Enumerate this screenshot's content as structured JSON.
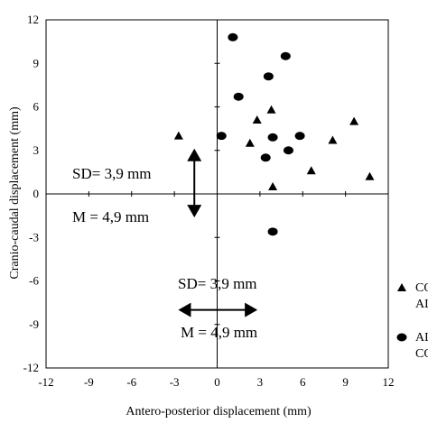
{
  "chart_data": {
    "type": "scatter",
    "xlabel": "Antero-posterior displacement (mm)",
    "ylabel": "Cranio-caudal displacement (mm)",
    "xlim": [
      -12,
      12
    ],
    "ylim": [
      -12,
      12
    ],
    "xticks": [
      -12,
      -9,
      -6,
      -3,
      0,
      3,
      6,
      9,
      12
    ],
    "yticks": [
      -12,
      -9,
      -6,
      -3,
      0,
      3,
      6,
      9,
      12
    ],
    "xtick_labels": [
      "-12",
      "-9",
      "-6",
      "-3",
      "0",
      "3",
      "6",
      "9",
      "12"
    ],
    "ytick_labels": [
      "-12",
      "-9",
      "-6",
      "-3",
      "0",
      "3",
      "6",
      "9",
      "12"
    ],
    "grid": false,
    "legend_position": "right",
    "series": [
      {
        "name": "CO",
        "name_line2": "AL",
        "marker": "triangle",
        "color": "#000000",
        "points": [
          {
            "x": -2.7,
            "y": 4.0
          },
          {
            "x": 2.3,
            "y": 3.5
          },
          {
            "x": 2.8,
            "y": 5.1
          },
          {
            "x": 3.8,
            "y": 5.8
          },
          {
            "x": 3.9,
            "y": 0.5
          },
          {
            "x": 6.6,
            "y": 1.6
          },
          {
            "x": 8.1,
            "y": 3.7
          },
          {
            "x": 9.6,
            "y": 5.0
          },
          {
            "x": 10.7,
            "y": 1.2
          }
        ]
      },
      {
        "name": "AL",
        "name_line2": "CO",
        "marker": "circle",
        "color": "#000000",
        "points": [
          {
            "x": 1.1,
            "y": 10.8
          },
          {
            "x": 0.3,
            "y": 4.0
          },
          {
            "x": 1.5,
            "y": 6.7
          },
          {
            "x": 3.6,
            "y": 8.1
          },
          {
            "x": 4.8,
            "y": 9.5
          },
          {
            "x": 3.9,
            "y": 3.9
          },
          {
            "x": 5.0,
            "y": 3.0
          },
          {
            "x": 3.4,
            "y": 2.5
          },
          {
            "x": 5.8,
            "y": 4.0
          },
          {
            "x": 3.9,
            "y": -2.6
          }
        ]
      }
    ],
    "annotations": [
      {
        "text_sd": "SD= 3,9 mm",
        "text_m": "M = 4,9 mm",
        "arrow": "vertical",
        "x": -1.6,
        "y_from": 3.0,
        "y_to": -1.5
      },
      {
        "text_sd": "SD= 3,9 mm",
        "text_m": "M = 4,9 mm",
        "arrow": "horizontal",
        "y": -8.0,
        "x_from": -2.6,
        "x_to": 2.7
      }
    ]
  }
}
